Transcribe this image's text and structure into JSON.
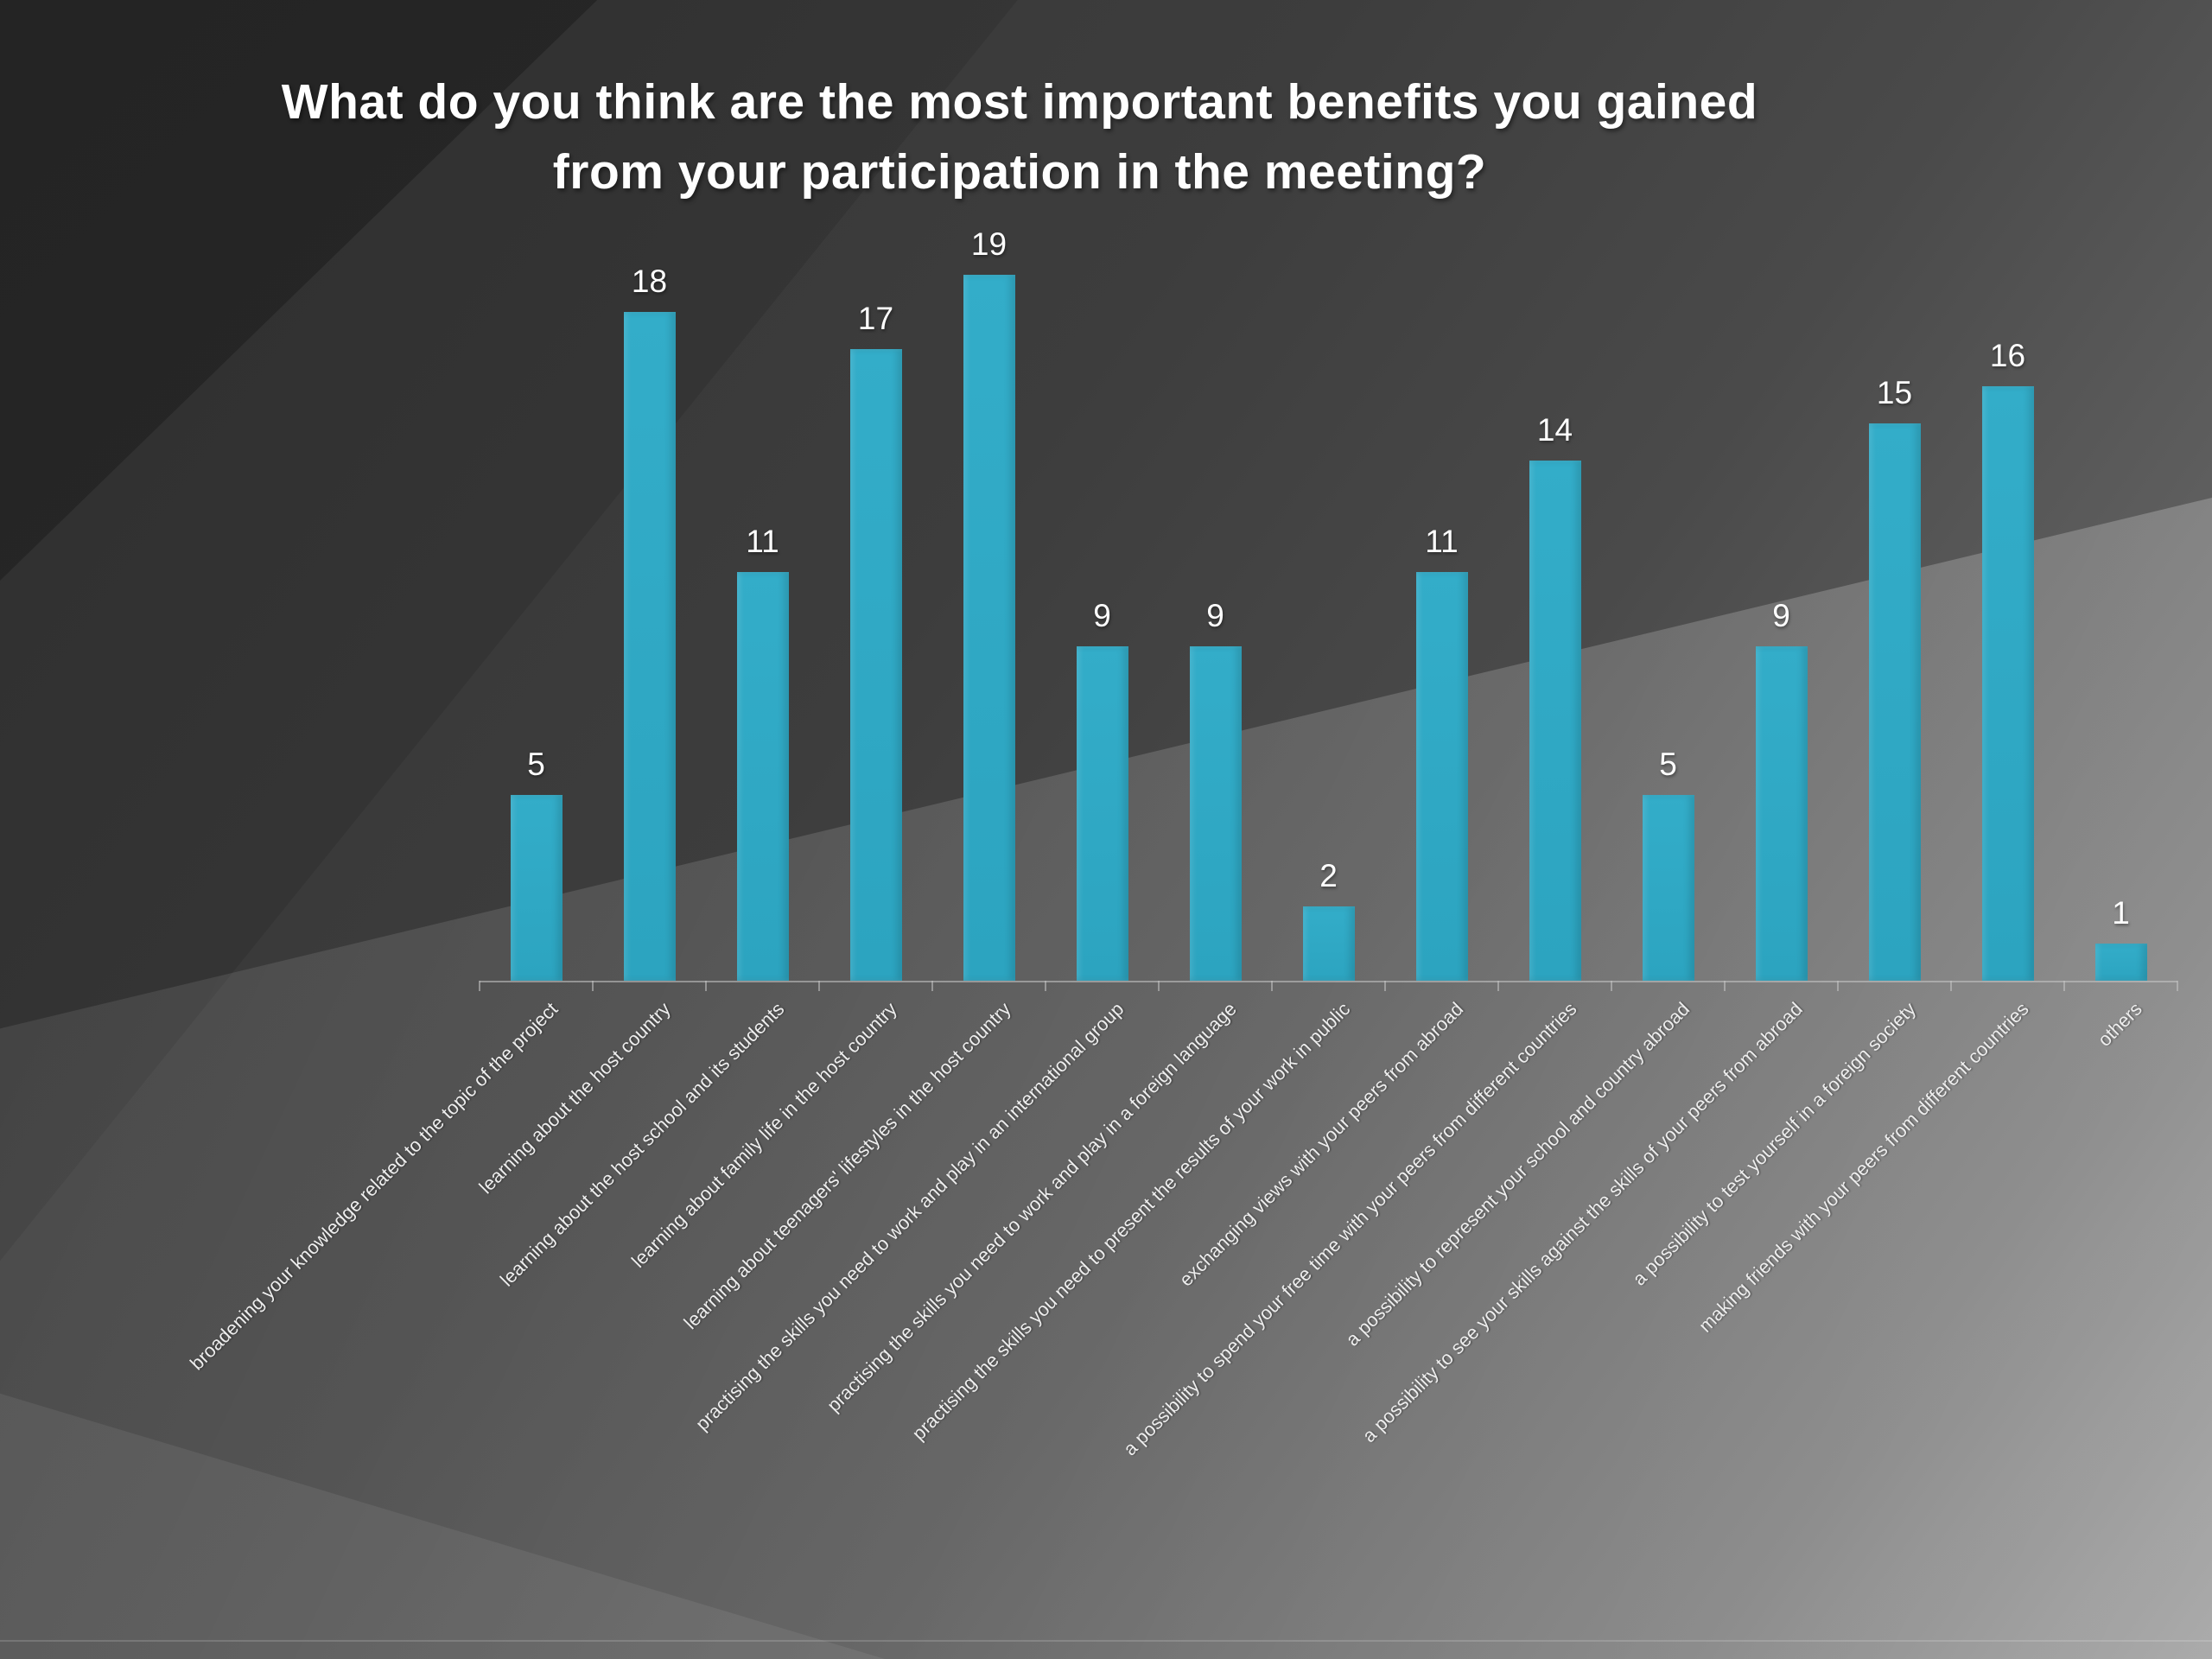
{
  "title": {
    "line1": "What do you think are the most important benefits you gained",
    "line2": "from your participation in the meeting?"
  },
  "chart_data": {
    "type": "bar",
    "title": "What do you think are the most important benefits you gained from your participation in the meeting?",
    "categories": [
      "broadening your knowledge related to the topic of the project",
      "learning about the host country",
      "learning about the host school and its students",
      "learning about family life in the host country",
      "learning about teenagers' lifestyles in the host country",
      "practising the skills you need to work and play in an international group",
      "practising the skills you need to work and play in a foreign language",
      "practising the skills you need to present the results of your work in public",
      "exchanging views with your peers from abroad",
      "a possibility to spend your free time with your peers from different countries",
      "a possibility to represent your school and country abroad",
      "a possibility to see your skills against the skills of your peers from abroad",
      "a possibility to test yourself in a foreign society",
      "making friends with your peers from different countries",
      "others"
    ],
    "values": [
      5,
      18,
      11,
      17,
      19,
      9,
      9,
      2,
      11,
      14,
      5,
      9,
      15,
      16,
      1
    ],
    "ylim": [
      0,
      19
    ],
    "grid": false,
    "legend": false,
    "data_labels": true,
    "colors": {
      "bar": "#2ca4c0",
      "bar_top": "#33adc9",
      "value_label": "#ffffff",
      "category_label": "#ededed",
      "axis": "#c8c8c8",
      "title": "#ffffff"
    }
  }
}
